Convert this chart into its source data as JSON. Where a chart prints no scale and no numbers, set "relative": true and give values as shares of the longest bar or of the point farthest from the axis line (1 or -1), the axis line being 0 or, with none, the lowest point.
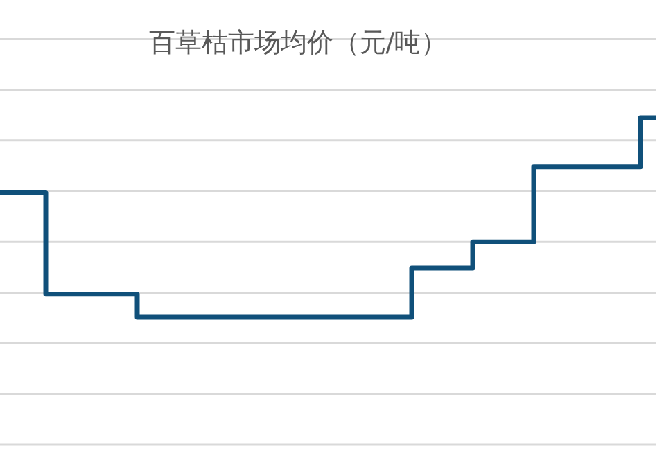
{
  "chart_data": {
    "type": "step",
    "title": "百草枯市场均价（元/吨）",
    "relative": true,
    "grid": "y",
    "marker": "none",
    "line_style": "solid",
    "categories": [
      null,
      null,
      null,
      null,
      null,
      null,
      null,
      null,
      null,
      null,
      null,
      null,
      null,
      null,
      null,
      null,
      null,
      null,
      null,
      null,
      null,
      null,
      null,
      null,
      null,
      null,
      null,
      null,
      null,
      null,
      null,
      null,
      null,
      null,
      null,
      null,
      null,
      null,
      null,
      null,
      null,
      null,
      null,
      null
    ],
    "series": [
      {
        "color": "#10507a",
        "values": [
          0.77,
          0.77,
          0.77,
          0.46,
          0.46,
          0.46,
          0.46,
          0.46,
          0.46,
          0.39,
          0.39,
          0.39,
          0.39,
          0.39,
          0.39,
          0.39,
          0.39,
          0.39,
          0.39,
          0.39,
          0.39,
          0.39,
          0.39,
          0.39,
          0.39,
          0.39,
          0.39,
          0.54,
          0.54,
          0.54,
          0.54,
          0.62,
          0.62,
          0.62,
          0.62,
          0.85,
          0.85,
          0.85,
          0.85,
          0.85,
          0.85,
          0.85,
          1,
          1
        ]
      }
    ]
  }
}
